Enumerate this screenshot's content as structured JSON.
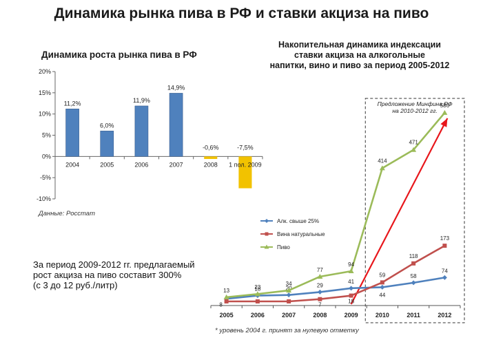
{
  "page": {
    "title": "Динамика рынка пива в РФ и ставки акциза на пиво",
    "source_note": "Данные: Росстат",
    "summary_lines": [
      "За период 2009-2012 гг. предлагаемый",
      "рост акциза на пиво составит 300%",
      "(с 3 до 12 руб./литр)"
    ],
    "footnote": "* уровень 2004 г. принят за нулевую отметку"
  },
  "chart_data": [
    {
      "type": "bar",
      "title": "Динамика роста рынка пива в РФ",
      "categories": [
        "2004",
        "2005",
        "2006",
        "2007",
        "2008",
        "1 пол. 2009"
      ],
      "values": [
        11.2,
        6.0,
        11.9,
        14.9,
        -0.6,
        -7.5
      ],
      "data_labels": [
        "11,2%",
        "6,0%",
        "11,9%",
        "14,9%",
        "-0,6%",
        "-7,5%"
      ],
      "bar_colors": [
        "#4f81bd",
        "#4f81bd",
        "#4f81bd",
        "#4f81bd",
        "#f2c200",
        "#f2c200"
      ],
      "ylim": [
        -10,
        20
      ],
      "y_ticks": [
        20,
        15,
        10,
        5,
        0,
        -5,
        -10
      ],
      "y_tick_labels": [
        "20%",
        "15%",
        "10%",
        "5%",
        "0%",
        "-5%",
        "-10%"
      ],
      "xlabel": "",
      "ylabel": ""
    },
    {
      "type": "line",
      "title": "Накопительная динамика индексации ставки акциза на алкогольные напитки, вино и пиво за период 2005-2012",
      "title_lines": [
        "Накопительная динамика индексации",
        "ставки акциза на алкогольные",
        "напитки, вино и пиво за период 2005-2012"
      ],
      "x": [
        "2005",
        "2006",
        "2007",
        "2008",
        "2009",
        "2010",
        "2011",
        "2012"
      ],
      "ylim": [
        0,
        620
      ],
      "series": [
        {
          "name": "Алк. свыше 25%",
          "color": "#4f81bd",
          "marker": "diamond",
          "values": [
            8,
            18,
            20,
            29,
            41,
            44,
            58,
            74
          ],
          "labels": [
            "8",
            "18",
            "20",
            "29",
            "41",
            "44",
            "58",
            "74"
          ]
        },
        {
          "name": "Вина натуральные",
          "color": "#c0504d",
          "marker": "square",
          "values": [
            0,
            0,
            0,
            7,
            18,
            59,
            118,
            173
          ],
          "labels": [
            "",
            "",
            "",
            "7",
            "18",
            "59",
            "118",
            "173"
          ]
        },
        {
          "name": "Пиво",
          "color": "#9bbb59",
          "marker": "triangle",
          "values": [
            13,
            23,
            34,
            77,
            94,
            414,
            471,
            586
          ],
          "labels": [
            "13",
            "23",
            "34",
            "77",
            "94",
            "414",
            "471",
            "586"
          ]
        }
      ],
      "proposal_box_label_lines": [
        "Предложение Минфина РФ",
        "на 2010-2012 гг."
      ],
      "proposal_range": [
        "2010",
        "2012"
      ],
      "trend_arrow": {
        "from_x": "2009",
        "from_y": 0,
        "to_x": "2012",
        "to_y": 586,
        "color": "#e8161b"
      },
      "footnote": "* уровень 2004 г. принят за нулевую отметку"
    }
  ]
}
